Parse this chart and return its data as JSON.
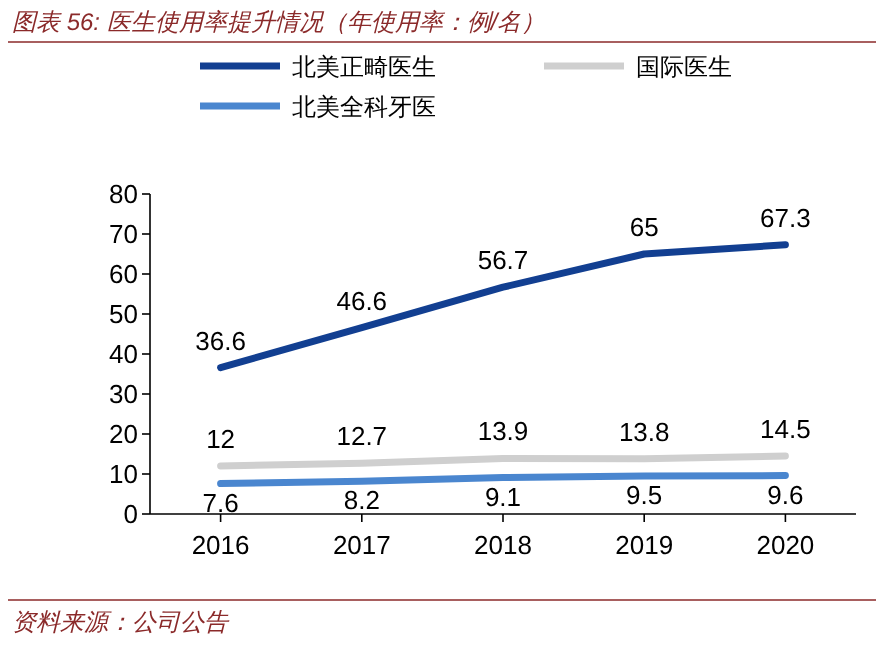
{
  "chart_data": {
    "type": "line",
    "title": "图表 56:  医生使用率提升情况（年使用率：例/名）",
    "categories": [
      "2016",
      "2017",
      "2018",
      "2019",
      "2020"
    ],
    "series": [
      {
        "name": "北美正畸医生",
        "color": "#123f91",
        "values": [
          36.6,
          46.6,
          56.7,
          65,
          67.3
        ]
      },
      {
        "name": "国际医生",
        "color": "#cfcfcf",
        "values": [
          12,
          12.7,
          13.9,
          13.8,
          14.5
        ]
      },
      {
        "name": "北美全科牙医",
        "color": "#4a86cf",
        "values": [
          7.6,
          8.2,
          9.1,
          9.5,
          9.6
        ]
      }
    ],
    "ylim": [
      0,
      80
    ],
    "yticks": [
      0,
      10,
      20,
      30,
      40,
      50,
      60,
      70,
      80
    ],
    "data_labels": true,
    "legend": "top",
    "grid": false,
    "annotations": [
      "资料来源：公司公告"
    ]
  }
}
